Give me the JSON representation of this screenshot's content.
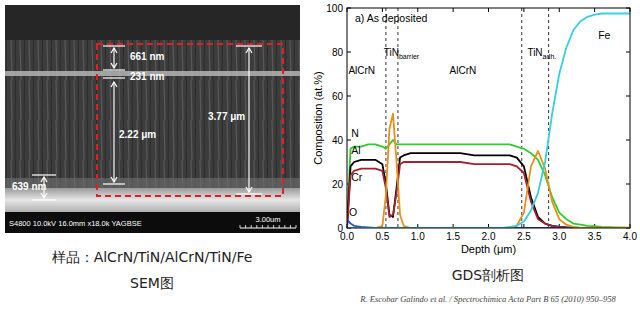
{
  "chart_data": {
    "type": "line",
    "title": "a) As deposited",
    "x_label": "Depth (μm)",
    "y_label": "Composition (at.%)",
    "x": [
      0,
      0.05,
      0.1,
      0.2,
      0.3,
      0.4,
      0.5,
      0.55,
      0.6,
      0.65,
      0.7,
      0.75,
      0.8,
      0.9,
      1.0,
      1.2,
      1.4,
      1.6,
      1.8,
      2.0,
      2.2,
      2.3,
      2.4,
      2.5,
      2.6,
      2.7,
      2.8,
      2.9,
      3.0,
      3.1,
      3.2,
      3.3,
      3.4,
      3.5,
      3.6,
      3.8,
      4.0
    ],
    "xlim": [
      0,
      4
    ],
    "xticks": [
      {
        "value": 0,
        "label": "0.0"
      },
      0.5,
      {
        "value": 1,
        "label": "1.0"
      },
      1.5,
      {
        "value": 2,
        "label": "2.0"
      },
      2.5,
      {
        "value": 3,
        "label": "3.0"
      },
      3.5,
      {
        "value": 4,
        "label": "4.0"
      }
    ],
    "ylim": [
      0,
      100
    ],
    "yticks": [
      0,
      20,
      40,
      60,
      80,
      100
    ],
    "grid": false,
    "series": [
      {
        "name": "N",
        "color": "#2ecc2e",
        "values": [
          2,
          36,
          37,
          37,
          38,
          38,
          37,
          36,
          38,
          40,
          38,
          38,
          38,
          38,
          38,
          38,
          38,
          38,
          38,
          38,
          38,
          38,
          37,
          36,
          34,
          31,
          24,
          14,
          7,
          4,
          2,
          1.5,
          1,
          0.8,
          0.5,
          0.3,
          0.2
        ]
      },
      {
        "name": "Al",
        "color": "#000000",
        "values": [
          0,
          28,
          30,
          31,
          31,
          31,
          29,
          20,
          6,
          5,
          18,
          32,
          33,
          34,
          34,
          34,
          34,
          34,
          33,
          33,
          33,
          33,
          32,
          28,
          14,
          5,
          2,
          1,
          0.5,
          0.3,
          0.2,
          0,
          0,
          0,
          0,
          0,
          0
        ]
      },
      {
        "name": "Cr",
        "color": "#a3202c",
        "values": [
          0,
          24,
          26,
          27,
          27,
          27,
          26,
          18,
          5,
          6,
          16,
          29,
          30,
          30,
          30,
          30,
          30,
          30,
          29,
          29,
          29,
          29,
          28,
          25,
          12,
          4,
          2,
          1,
          0.5,
          0.3,
          0,
          0,
          0,
          0,
          0,
          0,
          0
        ]
      },
      {
        "name": "O",
        "color": "#2f4fc4",
        "values": [
          4,
          2,
          1,
          0.5,
          0.3,
          0,
          0,
          0,
          0,
          0,
          0,
          0,
          0,
          0,
          0,
          0,
          0,
          0,
          0,
          0,
          0,
          0,
          0,
          0,
          0,
          0,
          0,
          0,
          0,
          0,
          0,
          0,
          0,
          0,
          0,
          0,
          0
        ]
      },
      {
        "color": "#e8901e",
        "values": [
          0,
          0,
          0,
          0,
          0,
          0,
          1,
          15,
          45,
          52,
          30,
          6,
          1,
          0,
          0,
          0,
          0,
          0,
          0,
          0,
          0,
          0,
          1,
          7,
          28,
          35,
          27,
          12,
          4,
          1.5,
          0.5,
          0,
          0,
          0,
          0,
          0,
          0
        ]
      },
      {
        "name": "Fe",
        "color": "#35cfe0",
        "values": [
          0,
          0,
          0,
          0,
          0,
          0,
          0,
          0,
          0,
          0,
          0,
          0,
          0,
          0,
          0,
          0,
          0,
          0,
          0,
          0,
          0,
          0.5,
          1,
          3,
          8,
          16,
          30,
          52,
          70,
          82,
          90,
          94,
          96,
          97,
          97.5,
          97.5,
          97.5
        ]
      }
    ],
    "boundaries": [
      0.55,
      0.72,
      2.47,
      2.85
    ],
    "annotations": [
      {
        "text": "AlCrN",
        "x": 0.02,
        "y": 70
      },
      {
        "text": "TiN",
        "sub": "barrier",
        "x": 0.52,
        "y": 78
      },
      {
        "text": "AlCrN",
        "x": 1.45,
        "y": 70
      },
      {
        "text": "TiN",
        "sub": "adh.",
        "x": 2.55,
        "y": 78
      }
    ]
  },
  "sem_image": {
    "annotations": [
      {
        "text": "661 nm"
      },
      {
        "text": "231 nm"
      },
      {
        "text": "2.22 μm"
      },
      {
        "text": "3.77 μm"
      },
      {
        "text": "639 nm"
      }
    ],
    "footer": "S4800 10.0kV 16.0mm x18.0k YAGBSE",
    "scale_bar": "3.00um"
  },
  "captions": {
    "sample": "样品：AlCrN/TiN/AlCrN/TiN/Fe",
    "sem": "SEM图",
    "gds": "GDS剖析图",
    "citation": "R. Escobar Galindo et al. / Spectrochimica Acta Part B 65 (2010) 950–958"
  }
}
